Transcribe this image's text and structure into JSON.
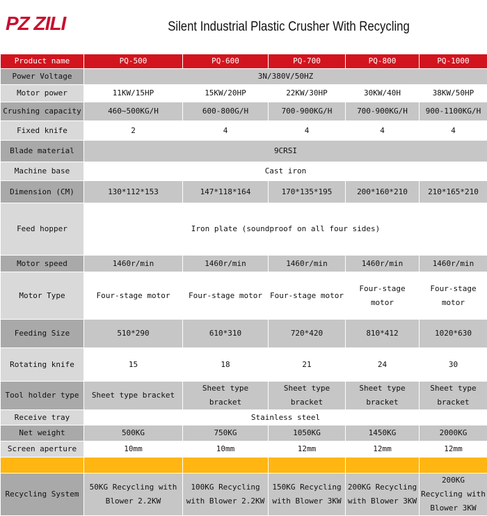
{
  "header": {
    "logo": "PZ ZILI",
    "title": "Silent Industrial Plastic Crusher With Recycling"
  },
  "table": {
    "columns": [
      "Product name",
      "PQ-500",
      "PQ-600",
      "PQ-700",
      "PQ-800",
      "PQ-1000"
    ],
    "rows": [
      {
        "label": "Power Voltage",
        "cells": [
          "3N/380V/50HZ"
        ]
      },
      {
        "label": "Motor power",
        "cells": [
          "11KW/15HP",
          "15KW/20HP",
          "22KW/30HP",
          "30KW/40H",
          "38KW/50HP"
        ]
      },
      {
        "label": "Crushing capacity",
        "cells": [
          "460~500KG/H",
          "600-800G/H",
          "700-900KG/H",
          "700-900KG/H",
          "900-1100KG/H"
        ]
      },
      {
        "label": "Fixed knife",
        "cells": [
          "2",
          "4",
          "4",
          "4",
          "4"
        ]
      },
      {
        "label": "Blade material",
        "cells": [
          "9CRSI"
        ]
      },
      {
        "label": "Machine base",
        "cells": [
          "Cast iron"
        ]
      },
      {
        "label": "Dimension (CM)",
        "cells": [
          "130*112*153",
          "147*118*164",
          "170*135*195",
          "200*160*210",
          "210*165*210"
        ]
      },
      {
        "label": "Feed hopper",
        "cells": [
          "Iron plate (soundproof on all four sides)"
        ]
      },
      {
        "label": "Motor speed",
        "cells": [
          "1460r/min",
          "1460r/min",
          "1460r/min",
          "1460r/min",
          "1460r/min"
        ]
      },
      {
        "label": "Motor Type",
        "cells": [
          "Four-stage motor",
          "Four-stage motor",
          "Four-stage motor",
          "Four-stage motor",
          "Four-stage motor"
        ]
      },
      {
        "label": "Feeding Size",
        "cells": [
          "510*290",
          "610*310",
          "720*420",
          "810*412",
          "1020*630"
        ]
      },
      {
        "label": "Rotating knife",
        "cells": [
          "15",
          "18",
          "21",
          "24",
          "30"
        ]
      },
      {
        "label": "Tool holder type",
        "cells": [
          "Sheet type bracket",
          "Sheet type bracket",
          "Sheet type bracket",
          "Sheet type bracket",
          "Sheet type bracket"
        ]
      },
      {
        "label": "Receive tray",
        "cells": [
          "Stainless steel"
        ]
      },
      {
        "label": "Net weight",
        "cells": [
          "500KG",
          "750KG",
          "1050KG",
          "1450KG",
          "2000KG"
        ]
      },
      {
        "label": "Screen aperture",
        "cells": [
          "10mm",
          "10mm",
          "12mm",
          "12mm",
          "12mm"
        ]
      },
      {
        "label": "Recycling System",
        "cells": [
          "50KG Recycling with Blower 2.2KW",
          "100KG Recycling with Blower 2.2KW",
          "150KG Recycling with Blower 3KW",
          "200KG Recycling with Blower 3KW",
          "200KG Recycling with Blower 3KW"
        ]
      }
    ]
  }
}
